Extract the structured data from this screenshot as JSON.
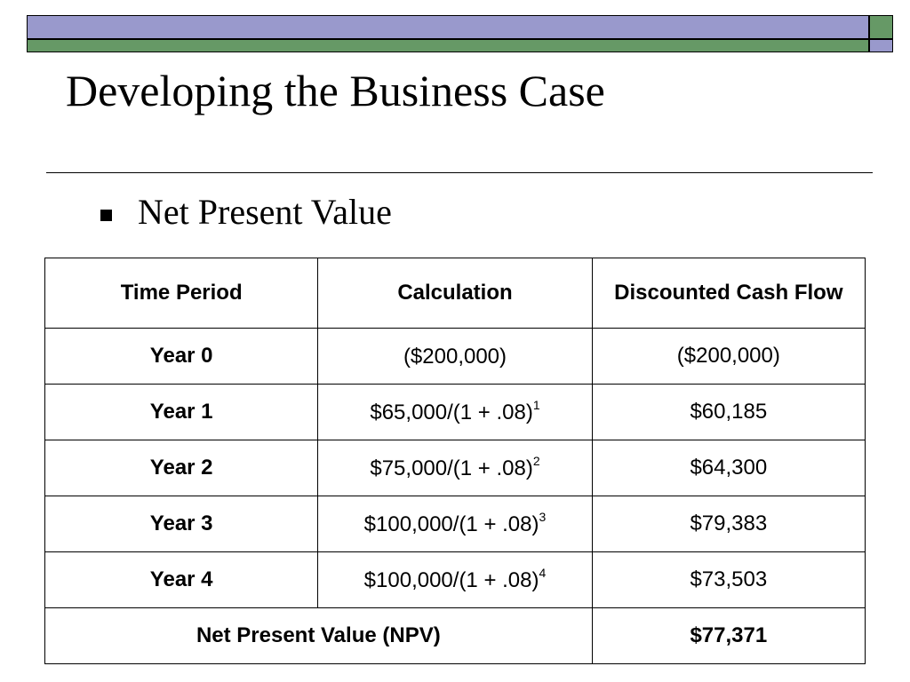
{
  "slide": {
    "title": "Developing the Business Case",
    "bullet": "Net Present Value"
  },
  "colors": {
    "header_purple": "#9999cc",
    "header_green": "#669966"
  },
  "table": {
    "headers": [
      "Time Period",
      "Calculation",
      "Discounted Cash Flow"
    ],
    "rows": [
      {
        "period": "Year 0",
        "calc_base": "($200,000)",
        "exponent": "",
        "dcf": "($200,000)"
      },
      {
        "period": "Year 1",
        "calc_base": "$65,000/(1 + .08)",
        "exponent": "1",
        "dcf": "$60,185"
      },
      {
        "period": "Year 2",
        "calc_base": "$75,000/(1 + .08)",
        "exponent": "2",
        "dcf": "$64,300"
      },
      {
        "period": "Year 3",
        "calc_base": "$100,000/(1 + .08)",
        "exponent": "3",
        "dcf": "$79,383"
      },
      {
        "period": "Year 4",
        "calc_base": "$100,000/(1 + .08)",
        "exponent": "4",
        "dcf": "$73,503"
      }
    ],
    "total": {
      "label": "Net Present Value (NPV)",
      "value": "$77,371"
    }
  }
}
